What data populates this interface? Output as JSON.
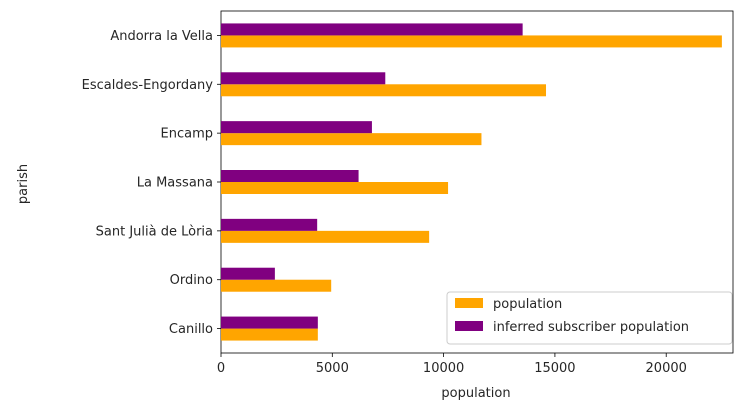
{
  "chart_data": {
    "type": "bar",
    "orientation": "horizontal",
    "categories": [
      "Andorra la Vella",
      "Escaldes-Engordany",
      "Encamp",
      "La Massana",
      "Sant Julià de Lòria",
      "Ordino",
      "Canillo"
    ],
    "series": [
      {
        "name": "population",
        "color": "#ffa500",
        "values": [
          22500,
          14600,
          11700,
          10200,
          9350,
          4950,
          4350
        ]
      },
      {
        "name": "inferred subscriber population",
        "color": "#800080",
        "values": [
          13550,
          7380,
          6780,
          6180,
          4320,
          2420,
          4350
        ]
      }
    ],
    "xlabel": "population",
    "ylabel": "parish",
    "xlim": [
      0,
      23000
    ],
    "xticks": [
      0,
      5000,
      10000,
      15000,
      20000
    ],
    "grid": false,
    "legend_position": "lower-right"
  }
}
